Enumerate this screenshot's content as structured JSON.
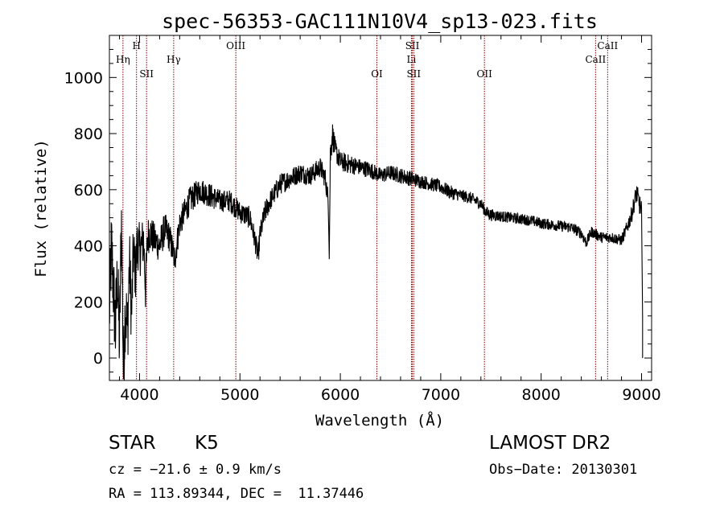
{
  "chart_data": {
    "type": "line",
    "title": "spec-56353-GAC111N10V4_sp13-023.fits",
    "xlabel": "Wavelength (Å)",
    "ylabel": "Flux (relative)",
    "xlim": [
      3700,
      9100
    ],
    "ylim": [
      -80,
      1150
    ],
    "xticks": [
      4000,
      5000,
      6000,
      7000,
      8000,
      9000
    ],
    "yticks": [
      0,
      200,
      400,
      600,
      800,
      1000
    ],
    "grid": false,
    "legend": "none",
    "line_color": "#000000",
    "marker_color": "#8b0000",
    "series": [
      {
        "x": [
          3700,
          3720,
          3740,
          3760,
          3780,
          3800,
          3820,
          3840,
          3860,
          3880,
          3900,
          3920,
          3940,
          3960,
          3980,
          4000,
          4020,
          4040,
          4060,
          4080,
          4100,
          4150,
          4200,
          4250,
          4300,
          4350,
          4400,
          4450,
          4500,
          4600,
          4700,
          4800,
          4900,
          5000,
          5100,
          5150,
          5180,
          5200,
          5250,
          5300,
          5400,
          5500,
          5600,
          5700,
          5800,
          5850,
          5880,
          5890,
          5900,
          5920,
          5950,
          6000,
          6100,
          6200,
          6300,
          6400,
          6500,
          6600,
          6700,
          6800,
          6900,
          7000,
          7100,
          7200,
          7300,
          7400,
          7450,
          7500,
          7600,
          7700,
          7800,
          7900,
          8000,
          8100,
          8200,
          8300,
          8400,
          8450,
          8500,
          8550,
          8600,
          8700,
          8800,
          8850,
          8900,
          8950,
          9000,
          9010
        ],
        "y": [
          150,
          400,
          250,
          100,
          300,
          50,
          500,
          -50,
          200,
          80,
          350,
          150,
          380,
          300,
          420,
          380,
          400,
          420,
          250,
          430,
          450,
          420,
          400,
          460,
          430,
          350,
          480,
          520,
          560,
          600,
          580,
          560,
          560,
          520,
          500,
          420,
          360,
          440,
          520,
          560,
          620,
          640,
          660,
          650,
          680,
          640,
          560,
          380,
          720,
          800,
          740,
          700,
          690,
          680,
          670,
          650,
          660,
          650,
          640,
          630,
          620,
          610,
          590,
          580,
          570,
          550,
          520,
          510,
          505,
          500,
          495,
          490,
          480,
          475,
          470,
          465,
          445,
          410,
          450,
          440,
          430,
          430,
          420,
          460,
          510,
          590,
          520,
          140
        ],
        "noise": [
          150,
          150,
          150,
          150,
          150,
          150,
          150,
          150,
          150,
          150,
          120,
          120,
          120,
          100,
          100,
          100,
          90,
          90,
          90,
          70,
          70,
          60,
          60,
          60,
          55,
          55,
          50,
          50,
          50,
          45,
          45,
          40,
          40,
          40,
          40,
          40,
          40,
          40,
          40,
          38,
          38,
          36,
          36,
          36,
          36,
          36,
          36,
          36,
          60,
          50,
          40,
          35,
          35,
          30,
          30,
          28,
          28,
          28,
          28,
          25,
          25,
          25,
          25,
          22,
          22,
          22,
          22,
          22,
          20,
          20,
          20,
          20,
          20,
          20,
          20,
          20,
          20,
          20,
          20,
          20,
          20,
          20,
          20,
          25,
          30,
          35,
          40,
          0
        ]
      }
    ],
    "spectral_lines": [
      {
        "label": "Hη",
        "x": 3835,
        "row": 1
      },
      {
        "label": "H",
        "x": 3970,
        "row": 0
      },
      {
        "label": "SII",
        "x": 4070,
        "row": 2
      },
      {
        "label": "Hγ",
        "x": 4340,
        "row": 1
      },
      {
        "label": "OIII",
        "x": 4959,
        "row": 0
      },
      {
        "label": "OI",
        "x": 6364,
        "row": 2
      },
      {
        "label": "SII",
        "x": 6717,
        "row": 0
      },
      {
        "label": "Li",
        "x": 6708,
        "row": 1
      },
      {
        "label": "SII",
        "x": 6731,
        "row": 2
      },
      {
        "label": "OII",
        "x": 7435,
        "row": 2
      },
      {
        "label": "CaII",
        "x": 8542,
        "row": 1
      },
      {
        "label": "CaII",
        "x": 8662,
        "row": 0
      }
    ]
  },
  "info": {
    "object_class": "STAR",
    "subclass": "K5",
    "survey": "LAMOST DR2",
    "cz": "cz = −21.6 ± 0.9 km/s",
    "obs_date": "Obs−Date: 20130301",
    "coords": "RA = 113.89344, DEC =  11.37446"
  }
}
